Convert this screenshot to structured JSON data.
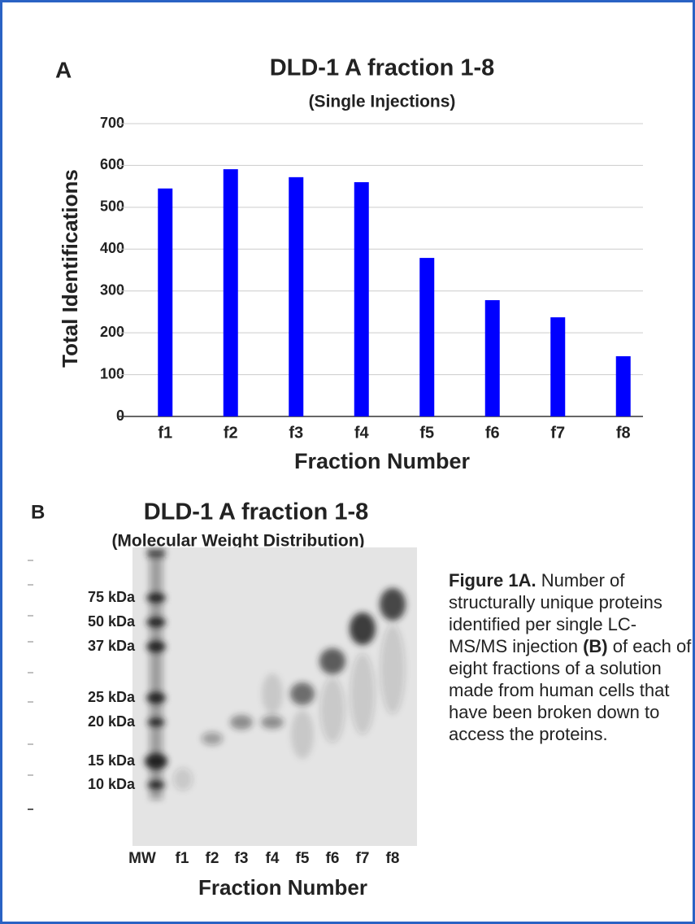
{
  "chart_data": {
    "type": "bar",
    "panel_label": "A",
    "title": "DLD-1 A fraction 1-8",
    "subtitle": "(Single Injections)",
    "y_label": "Total Identifications",
    "x_label": "Fraction Number",
    "categories": [
      "f1",
      "f2",
      "f3",
      "f4",
      "f5",
      "f6",
      "f7",
      "f8"
    ],
    "values": [
      545,
      591,
      572,
      560,
      379,
      278,
      237,
      144
    ],
    "color": "#0000ff",
    "ylim": [
      0,
      700
    ],
    "yticks": [
      0,
      100,
      200,
      300,
      400,
      500,
      600,
      700
    ],
    "grid": true
  },
  "gel": {
    "panel_label": "B",
    "title": "DLD-1 A fraction 1-8",
    "subtitle": "(Molecular Weight Distribution)",
    "marker_labels": [
      "75 kDa",
      "50 kDa",
      "37 kDa",
      "25 kDa",
      "20 kDa",
      "15 kDa",
      "10 kDa"
    ],
    "lane_labels": [
      "MW",
      "f1",
      "f2",
      "f3",
      "f4",
      "f5",
      "f6",
      "f7",
      "f8"
    ],
    "x_label": "Fraction Number"
  },
  "caption": {
    "bold_1": "Figure 1A.",
    "text_1": "Number of structurally unique proteins identified per single LC-MS/MS injection",
    "bold_2": "(B)",
    "text_2": "of each of eight fractions of a solution made from human cells that have been broken down to access the proteins."
  }
}
